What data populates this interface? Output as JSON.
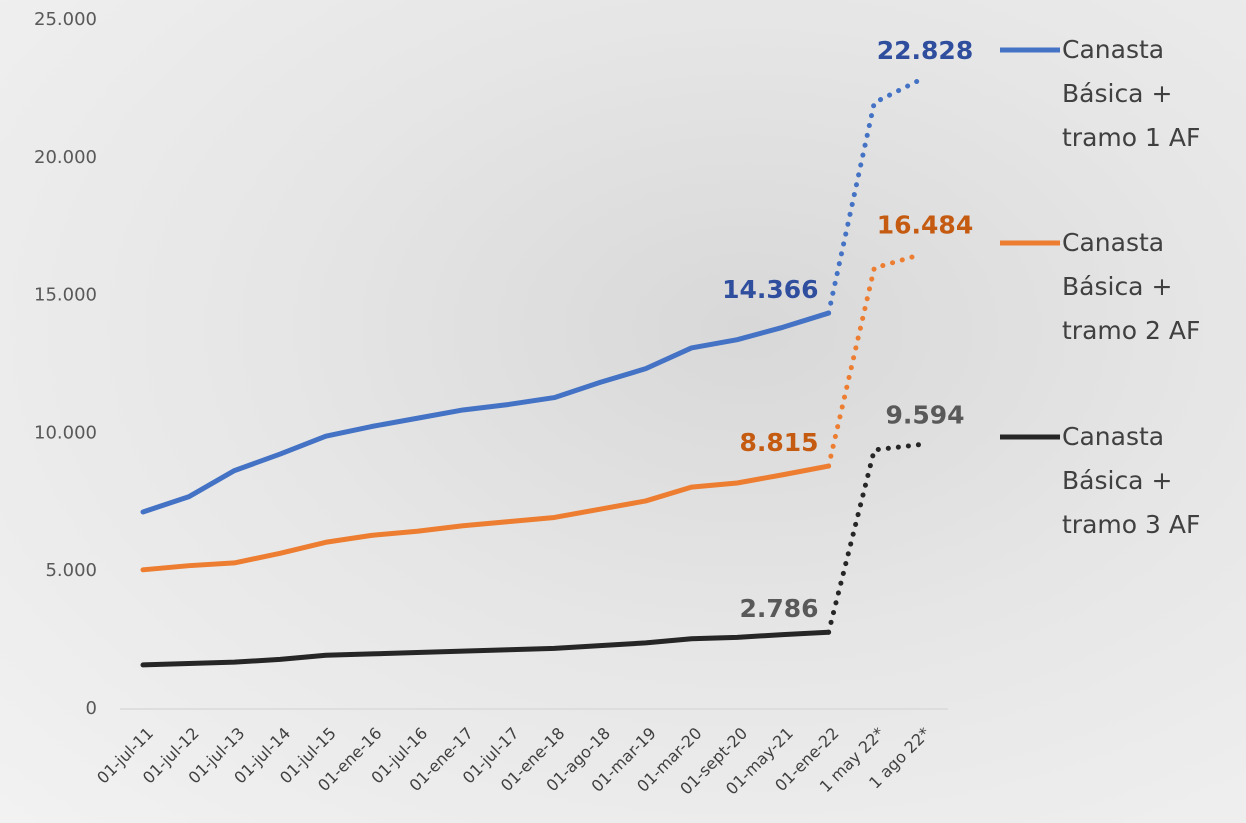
{
  "chart_data": {
    "type": "line",
    "categories": [
      "01-jul-11",
      "01-jul-12",
      "01-jul-13",
      "01-jul-14",
      "01-jul-15",
      "01-ene-16",
      "01-jul-16",
      "01-ene-17",
      "01-jul-17",
      "01-ene-18",
      "01-ago-18",
      "01-mar-19",
      "01-mar-20",
      "01-sept-20",
      "01-may-21",
      "01-ene-22",
      "1 may 22*",
      "1 ago 22*"
    ],
    "series": [
      {
        "name": "Canasta Básica + tramo 1 AF",
        "color": "#4472c4",
        "label_color": "#2f4f9e",
        "values": [
          7150,
          7700,
          8650,
          9250,
          9900,
          10250,
          10550,
          10850,
          11050,
          11300,
          11850,
          12350,
          13100,
          13400,
          13850,
          14366,
          22000,
          22828
        ],
        "value_labels": [
          null,
          null,
          null,
          null,
          null,
          null,
          null,
          null,
          null,
          null,
          null,
          null,
          null,
          null,
          null,
          "14.366",
          null,
          "22.828"
        ]
      },
      {
        "name": "Canasta Básica + tramo 2 AF",
        "color": "#ed7d31",
        "label_color": "#c55a11",
        "values": [
          5050,
          5200,
          5300,
          5650,
          6050,
          6300,
          6450,
          6650,
          6800,
          6950,
          7250,
          7550,
          8050,
          8200,
          8500,
          8815,
          16000,
          16484
        ],
        "value_labels": [
          null,
          null,
          null,
          null,
          null,
          null,
          null,
          null,
          null,
          null,
          null,
          null,
          null,
          null,
          null,
          "8.815",
          null,
          "16.484"
        ]
      },
      {
        "name": "Canasta Básica + tramo 3 AF",
        "color": "#262626",
        "label_color": "#595959",
        "values": [
          1600,
          1650,
          1700,
          1800,
          1950,
          2000,
          2050,
          2100,
          2150,
          2200,
          2300,
          2400,
          2550,
          2600,
          2700,
          2786,
          9400,
          9594
        ],
        "value_labels": [
          null,
          null,
          null,
          null,
          null,
          null,
          null,
          null,
          null,
          null,
          null,
          null,
          null,
          null,
          null,
          "2.786",
          null,
          "9.594"
        ]
      }
    ],
    "ylim": [
      0,
      25000
    ],
    "yticks": [
      0,
      {
        "value": 5000,
        "label": "5.000"
      },
      {
        "value": 10000,
        "label": "10.000"
      },
      {
        "value": 15000,
        "label": "15.000"
      },
      {
        "value": 20000,
        "label": "20.000"
      },
      {
        "value": 25000,
        "label": "25.000"
      }
    ],
    "grid": false,
    "legend": "right"
  }
}
